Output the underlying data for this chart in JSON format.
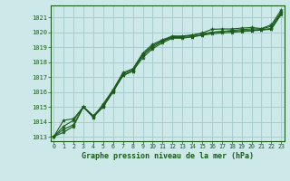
{
  "bg_color": "#cce8e8",
  "grid_color": "#aacccc",
  "line_color": "#1a5c1a",
  "xlabel": "Graphe pression niveau de la mer (hPa)",
  "ylim": [
    1012.7,
    1021.8
  ],
  "xlim": [
    -0.3,
    23.3
  ],
  "yticks": [
    1013,
    1014,
    1015,
    1016,
    1017,
    1018,
    1019,
    1020,
    1021
  ],
  "xticks": [
    0,
    1,
    2,
    3,
    4,
    5,
    6,
    7,
    8,
    9,
    10,
    11,
    12,
    13,
    14,
    15,
    16,
    17,
    18,
    19,
    20,
    21,
    22,
    23
  ],
  "series": [
    [
      1013.0,
      1013.3,
      1013.7,
      1015.0,
      1014.3,
      1015.0,
      1016.0,
      1017.1,
      1017.4,
      1018.3,
      1018.9,
      1019.3,
      1019.6,
      1019.6,
      1019.7,
      1019.8,
      1019.9,
      1019.95,
      1020.0,
      1020.05,
      1020.1,
      1020.15,
      1020.2,
      1021.2
    ],
    [
      1013.0,
      1013.5,
      1013.8,
      1015.0,
      1014.4,
      1015.0,
      1016.05,
      1017.1,
      1017.4,
      1018.45,
      1019.0,
      1019.4,
      1019.65,
      1019.65,
      1019.7,
      1019.82,
      1020.0,
      1020.05,
      1020.08,
      1020.1,
      1020.12,
      1020.18,
      1020.25,
      1021.3
    ],
    [
      1013.0,
      1013.7,
      1014.1,
      1015.0,
      1014.4,
      1015.1,
      1016.1,
      1017.2,
      1017.5,
      1018.5,
      1019.1,
      1019.45,
      1019.7,
      1019.7,
      1019.8,
      1019.9,
      1020.0,
      1020.05,
      1020.12,
      1020.18,
      1020.22,
      1020.22,
      1020.4,
      1021.35
    ],
    [
      1013.0,
      1014.1,
      1014.2,
      1015.0,
      1014.3,
      1015.2,
      1016.15,
      1017.3,
      1017.55,
      1018.6,
      1019.2,
      1019.5,
      1019.75,
      1019.75,
      1019.82,
      1019.95,
      1020.2,
      1020.22,
      1020.22,
      1020.28,
      1020.32,
      1020.25,
      1020.5,
      1021.5
    ]
  ]
}
